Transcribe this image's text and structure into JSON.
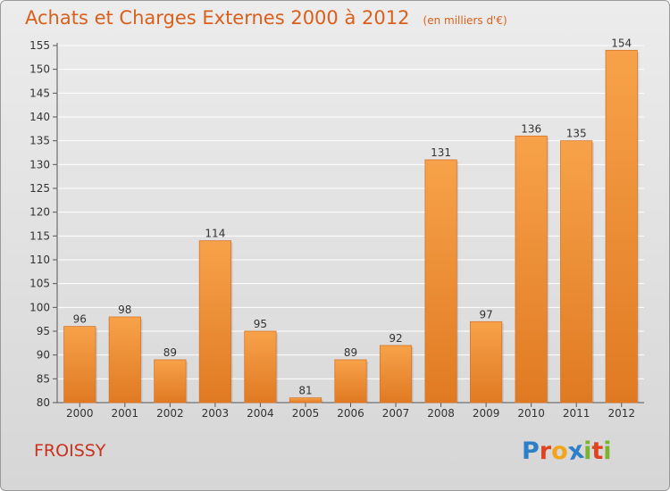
{
  "header": {
    "title": "Achats et Charges Externes 2000 à 2012",
    "unit": "(en milliers d'€)"
  },
  "footer": {
    "commune": "FROISSY",
    "logo": {
      "text": "Proxiti",
      "letters": [
        {
          "char": "P",
          "color": "#2f7fc8"
        },
        {
          "char": "r",
          "color": "#e0431f"
        },
        {
          "char": "o",
          "color": "#f2a41a"
        },
        {
          "char": "x",
          "color": "#2f7fc8"
        },
        {
          "char": "i",
          "color": "#7bb32e"
        },
        {
          "char": "t",
          "color": "#e0431f"
        },
        {
          "char": "i",
          "color": "#7bb32e"
        }
      ]
    }
  },
  "colors": {
    "bar_light": "#f7a24a",
    "bar_dark": "#e07a22",
    "title": "#d9601c",
    "commune": "#c8321e",
    "grid": "#ffffff"
  },
  "chart_data": {
    "type": "bar",
    "title": "Achats et Charges Externes 2000 à 2012",
    "subtitle": "(en milliers d'€)",
    "categories": [
      "2000",
      "2001",
      "2002",
      "2003",
      "2004",
      "2005",
      "2006",
      "2007",
      "2008",
      "2009",
      "2010",
      "2011",
      "2012"
    ],
    "values": [
      96,
      98,
      89,
      114,
      95,
      81,
      89,
      92,
      131,
      97,
      136,
      135,
      154
    ],
    "ylim": [
      80,
      155
    ],
    "yticks": [
      80,
      85,
      90,
      95,
      100,
      105,
      110,
      115,
      120,
      125,
      130,
      135,
      140,
      145,
      150,
      155
    ],
    "grid": true,
    "data_labels": true,
    "legend": "none"
  }
}
